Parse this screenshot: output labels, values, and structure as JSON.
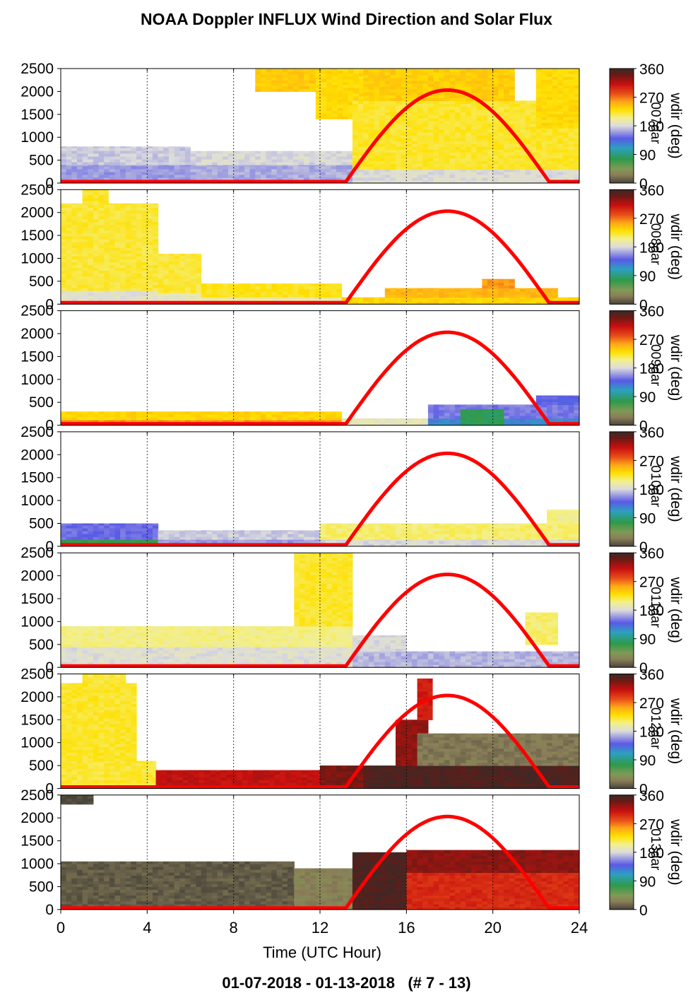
{
  "title": "NOAA Doppler INFLUX Wind Direction and Solar Flux",
  "subtitle": "01-07-2018 - 01-13-2018   (# 7 - 13)",
  "chart_data": {
    "type": "heatmap",
    "xlabel": "Time (UTC Hour)",
    "xlim": [
      0,
      24
    ],
    "x_ticks": [
      0,
      4,
      8,
      12,
      16,
      20,
      24
    ],
    "ylim": [
      0,
      2500
    ],
    "y_ticks": [
      0,
      500,
      1000,
      1500,
      2000,
      2500
    ],
    "colorbar": {
      "label": "wdir (deg)",
      "ticks": [
        0,
        90,
        180,
        270,
        360
      ],
      "stops": [
        {
          "v": 0,
          "c": "#48443a"
        },
        {
          "v": 25,
          "c": "#8a7e58"
        },
        {
          "v": 45,
          "c": "#7f9a55"
        },
        {
          "v": 75,
          "c": "#2e9a4a"
        },
        {
          "v": 110,
          "c": "#2ca0c0"
        },
        {
          "v": 140,
          "c": "#5a5ae6"
        },
        {
          "v": 180,
          "c": "#dcdcdc"
        },
        {
          "v": 205,
          "c": "#f3f08a"
        },
        {
          "v": 230,
          "c": "#ffe000"
        },
        {
          "v": 255,
          "c": "#ffa818"
        },
        {
          "v": 280,
          "c": "#e85018"
        },
        {
          "v": 310,
          "c": "#c81010"
        },
        {
          "v": 340,
          "c": "#6a1a14"
        },
        {
          "v": 360,
          "c": "#3a2a28"
        }
      ]
    },
    "solar_flux": {
      "color": "#ff0000",
      "start_hour": 13.2,
      "peak_hour": 17.9,
      "end_hour": 22.6,
      "peak_height": 2000
    },
    "panels": [
      {
        "day": "007",
        "blocks": [
          [
            0,
            6,
            0,
            400,
            160
          ],
          [
            0,
            6,
            400,
            800,
            175
          ],
          [
            6,
            13.5,
            0,
            400,
            165
          ],
          [
            6,
            13.5,
            400,
            700,
            180
          ],
          [
            9,
            12,
            2000,
            2500,
            240
          ],
          [
            11.8,
            14.5,
            1400,
            2500,
            232
          ],
          [
            13.5,
            24,
            0,
            300,
            182
          ],
          [
            13.5,
            24,
            300,
            1800,
            222
          ],
          [
            14,
            21,
            1800,
            2500,
            238
          ],
          [
            22,
            24,
            1200,
            2500,
            232
          ]
        ]
      },
      {
        "day": "008",
        "blocks": [
          [
            0,
            4.5,
            0,
            300,
            185
          ],
          [
            0,
            4.5,
            300,
            2200,
            220
          ],
          [
            1,
            2.2,
            2200,
            2500,
            222
          ],
          [
            4.5,
            6.5,
            0,
            250,
            190
          ],
          [
            4.5,
            6.5,
            250,
            1100,
            220
          ],
          [
            6.5,
            13,
            0,
            150,
            195
          ],
          [
            6.5,
            13,
            150,
            450,
            225
          ],
          [
            13,
            24,
            0,
            150,
            235
          ],
          [
            15,
            23,
            150,
            350,
            248
          ],
          [
            19.5,
            21,
            350,
            550,
            258
          ]
        ]
      },
      {
        "day": "009",
        "blocks": [
          [
            0,
            13,
            0,
            120,
            262
          ],
          [
            0,
            13,
            120,
            300,
            235
          ],
          [
            13,
            17,
            0,
            150,
            190
          ],
          [
            17,
            24,
            0,
            150,
            120
          ],
          [
            17,
            24,
            150,
            450,
            150
          ],
          [
            18.5,
            20.5,
            0,
            350,
            78
          ],
          [
            22,
            24,
            450,
            650,
            140
          ]
        ]
      },
      {
        "day": "010",
        "blocks": [
          [
            0,
            4.5,
            0,
            150,
            75
          ],
          [
            0,
            4.5,
            150,
            500,
            145
          ],
          [
            4.5,
            12,
            0,
            150,
            160
          ],
          [
            4.5,
            12,
            150,
            350,
            175
          ],
          [
            12,
            24,
            0,
            150,
            180
          ],
          [
            12,
            24,
            150,
            500,
            210
          ],
          [
            22.5,
            24,
            500,
            800,
            205
          ]
        ]
      },
      {
        "day": "011",
        "blocks": [
          [
            0,
            13.5,
            0,
            450,
            183
          ],
          [
            0,
            13.5,
            450,
            900,
            205
          ],
          [
            10.8,
            13.5,
            900,
            2500,
            222
          ],
          [
            13.5,
            24,
            0,
            350,
            168
          ],
          [
            13.5,
            16,
            350,
            700,
            180
          ],
          [
            21.5,
            23,
            500,
            1200,
            210
          ]
        ]
      },
      {
        "day": "012",
        "blocks": [
          [
            0,
            4.4,
            0,
            600,
            220
          ],
          [
            0,
            3.5,
            600,
            2300,
            222
          ],
          [
            1,
            3,
            2300,
            2500,
            220
          ],
          [
            4.4,
            12,
            0,
            400,
            312
          ],
          [
            12,
            14,
            0,
            500,
            335
          ],
          [
            14,
            24,
            0,
            500,
            352
          ],
          [
            15.5,
            17,
            500,
            1500,
            328
          ],
          [
            16.5,
            17.2,
            1500,
            2400,
            305
          ],
          [
            16.5,
            24,
            500,
            1200,
            22
          ]
        ]
      },
      {
        "day": "013",
        "blocks": [
          [
            0,
            10.8,
            0,
            1050,
            10
          ],
          [
            10.8,
            13.5,
            0,
            900,
            28
          ],
          [
            13.5,
            16,
            0,
            1250,
            352
          ],
          [
            16,
            24,
            800,
            1300,
            330
          ],
          [
            16,
            24,
            0,
            800,
            298
          ],
          [
            0,
            1.5,
            2300,
            2500,
            0
          ]
        ]
      }
    ]
  }
}
